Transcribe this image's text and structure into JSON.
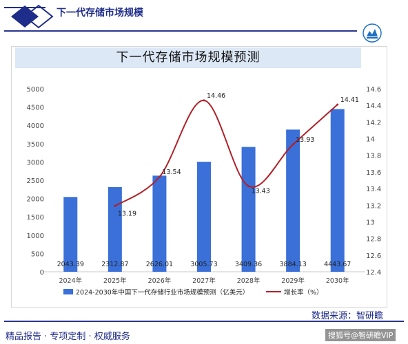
{
  "header": {
    "title": "下一代存储市场规模"
  },
  "source_text": "数据来源：智研瞻",
  "footer": {
    "left": "精品报告 · 专项定制 · 权威服务",
    "watermark": "搜狐号@智研瞻VIP"
  },
  "colors": {
    "bar": "#3a70d8",
    "line": "#b22028",
    "brand": "#1f2d8a"
  },
  "chart_data": {
    "type": "bar",
    "title": "下一代存储市场规模预测",
    "categories": [
      "2024年",
      "2025年",
      "2026年",
      "2027年",
      "2028年",
      "2029年",
      "2030年"
    ],
    "series": [
      {
        "name": "2024-2030年中国下一代存储行业市场规模预测（亿美元）",
        "type": "bar",
        "axis": "left",
        "values": [
          2043.39,
          2312.87,
          2626.01,
          3005.73,
          3409.36,
          3884.13,
          4443.67
        ]
      },
      {
        "name": "增长率（%）",
        "type": "line",
        "axis": "right",
        "values": [
          null,
          13.19,
          13.54,
          14.46,
          13.43,
          13.93,
          14.41
        ]
      }
    ],
    "bar_labels": [
      "2043.39",
      "2312.87",
      "2626.01",
      "3005.73",
      "3409.36",
      "3884.13",
      "4443.67"
    ],
    "line_labels": [
      "",
      "13.19",
      "13.54",
      "14.46",
      "13.43",
      "13.93",
      "14.41"
    ],
    "ylim_left": [
      0,
      5000
    ],
    "yticks_left": [
      "0",
      "500",
      "1000",
      "1500",
      "2000",
      "2500",
      "3000",
      "3500",
      "4000",
      "4500",
      "5000"
    ],
    "ylim_right": [
      12.4,
      14.6
    ],
    "yticks_right": [
      "12.4",
      "12.6",
      "12.8",
      "13",
      "13.2",
      "13.4",
      "13.6",
      "13.8",
      "14",
      "14.2",
      "14.4",
      "14.6"
    ],
    "grid": false,
    "legend": "bottom"
  }
}
